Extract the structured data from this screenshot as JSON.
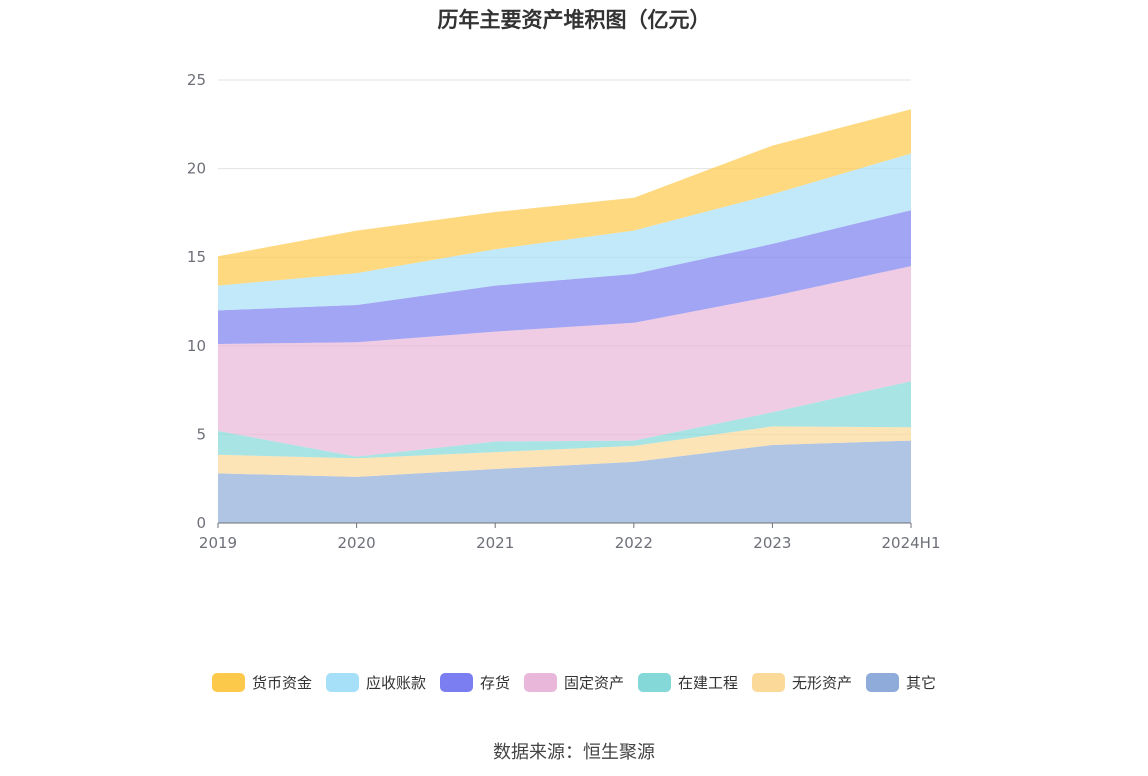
{
  "chart_data": {
    "type": "area",
    "stacked": true,
    "title": "历年主要资产堆积图（亿元）",
    "categories": [
      "2019",
      "2020",
      "2021",
      "2022",
      "2023",
      "2024H1"
    ],
    "ylim": [
      0,
      25
    ],
    "yticks": [
      0,
      5,
      10,
      15,
      20,
      25
    ],
    "grid": true,
    "legend_position": "bottom",
    "series": [
      {
        "name": "其它",
        "color": "#8fabd9",
        "values": [
          2.8,
          2.6,
          3.05,
          3.45,
          4.4,
          4.65
        ]
      },
      {
        "name": "无形资产",
        "color": "#fbd999",
        "values": [
          1.05,
          1.05,
          0.95,
          0.9,
          1.05,
          0.75
        ]
      },
      {
        "name": "在建工程",
        "color": "#85d8d8",
        "values": [
          1.35,
          0.1,
          0.6,
          0.3,
          0.8,
          2.6
        ]
      },
      {
        "name": "固定资产",
        "color": "#e8b7d9",
        "values": [
          4.9,
          6.45,
          6.2,
          6.65,
          6.55,
          6.5
        ]
      },
      {
        "name": "存货",
        "color": "#7b7ef0",
        "values": [
          1.9,
          2.1,
          2.6,
          2.75,
          2.95,
          3.15
        ]
      },
      {
        "name": "应收账款",
        "color": "#a6dff8",
        "values": [
          1.4,
          1.8,
          2.05,
          2.45,
          2.8,
          3.2
        ]
      },
      {
        "name": "货币资金",
        "color": "#fdc94a",
        "values": [
          1.65,
          2.4,
          2.1,
          1.85,
          2.75,
          2.5
        ]
      }
    ],
    "legend_order": [
      "货币资金",
      "应收账款",
      "存货",
      "固定资产",
      "在建工程",
      "无形资产",
      "其它"
    ]
  },
  "source_text": "数据来源：恒生聚源"
}
